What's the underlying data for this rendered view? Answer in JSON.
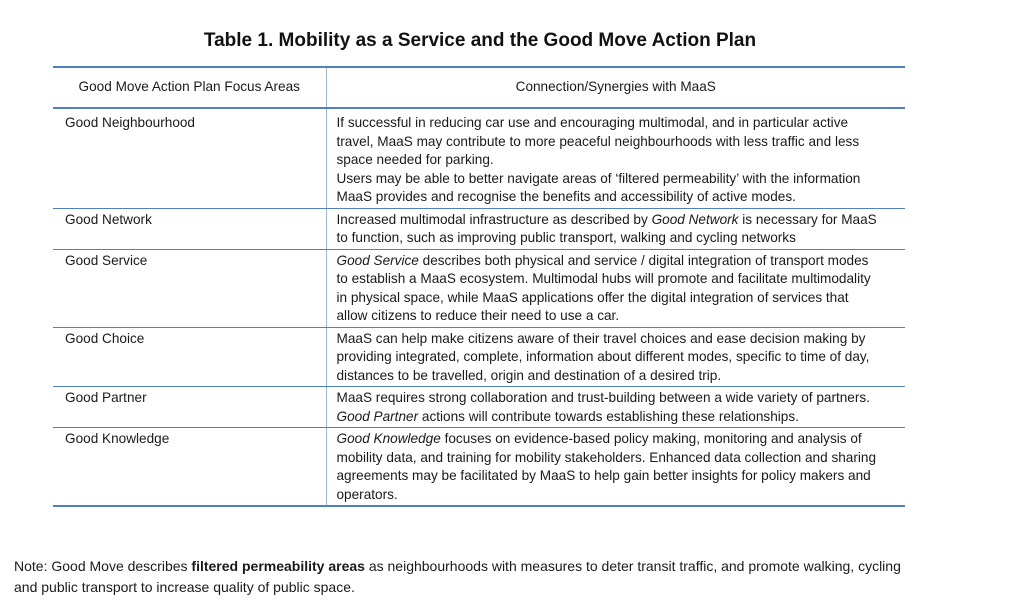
{
  "caption": "Table 1. Mobility as a Service and the Good Move Action Plan",
  "headers": {
    "col1": "Good Move Action Plan Focus Areas",
    "col2": "Connection/Synergies with MaaS"
  },
  "rows": [
    {
      "area": "Good Neighbourhood",
      "lines": [
        "If successful in reducing car use and encouraging multimodal, and in particular active",
        "travel, MaaS may contribute to more peaceful neighbourhoods with less traffic and less",
        "space needed for parking.",
        "Users may be able to better navigate areas of ‘filtered permeability’ with the information",
        "MaaS provides and recognise the benefits and accessibility of active modes."
      ]
    },
    {
      "area": "Good Network",
      "lines_pre": "Increased multimodal infrastructure as described by ",
      "lines_em": "Good Network",
      "lines_post": " is necessary for MaaS",
      "line2": "to function, such as improving public transport, walking and cycling networks"
    },
    {
      "area": "Good Service",
      "em": "Good Service",
      "line1_rest": " describes both physical and service / digital integration of transport modes",
      "lines": [
        "to establish a MaaS ecosystem. Multimodal hubs will promote and facilitate multimodality",
        "in physical space, while MaaS applications offer the digital integration of services that",
        "allow citizens to reduce their need to use a car."
      ]
    },
    {
      "area": "Good Choice",
      "lines": [
        "MaaS can help make citizens aware of their travel choices and ease decision making by",
        "providing integrated, complete, information about different modes, specific to time of day,",
        "distances to be travelled, origin and destination of a desired trip."
      ]
    },
    {
      "area": "Good Partner",
      "line1": "MaaS requires strong collaboration and trust-building between a wide variety of partners.",
      "em": "Good Partner",
      "line2_rest": " actions will contribute towards establishing these relationships."
    },
    {
      "area": "Good Knowledge",
      "em": "Good Knowledge",
      "line1_rest": " focuses on evidence-based policy making, monitoring and analysis of",
      "lines": [
        "mobility data, and training for mobility stakeholders. Enhanced data collection and sharing",
        "agreements may be facilitated by MaaS to help gain better insights for policy makers and",
        "operators."
      ]
    }
  ],
  "note": {
    "prefix": "Note: Good Move describes ",
    "bold": "filtered permeability areas",
    "suffix": " as neighbourhoods with measures to deter transit traffic, and promote walking, cycling",
    "line2": "and public transport to increase quality of public space."
  }
}
